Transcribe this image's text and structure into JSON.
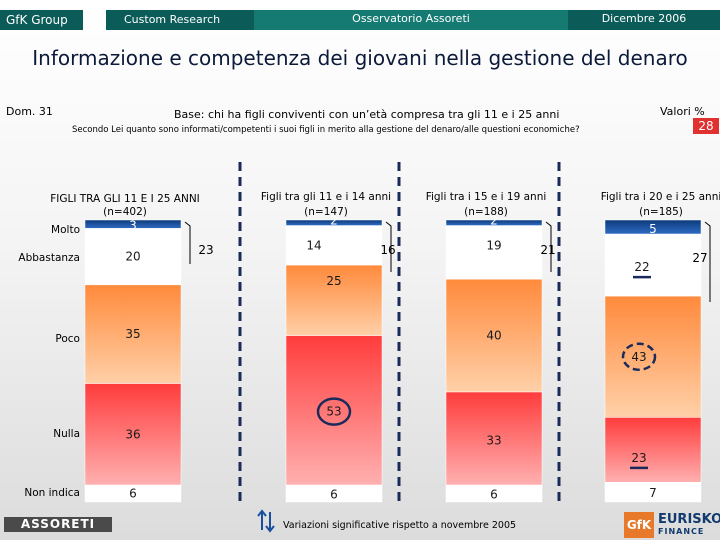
{
  "header": {
    "brand": "GfK Group",
    "dept": "Custom Research",
    "study": "Osservatorio Assoreti",
    "date": "Dicembre 2006"
  },
  "title": "Informazione e competenza dei giovani nella gestione del denaro",
  "question_code": "Dom. 31",
  "base": "Base: chi ha figli conviventi con un’età compresa tra gli 11 e i 25 anni",
  "question": "Secondo Lei quanto sono informati/competenti i suoi figli in merito alla gestione del denaro/alle questioni economiche?",
  "values_label": "Valori %",
  "chart_data": {
    "type": "bar",
    "stacked": true,
    "unit": "%",
    "categories": [
      "Molto",
      "Abbastanza",
      "Poco",
      "Nulla",
      "Non indica"
    ],
    "groups": [
      {
        "name": "FIGLI TRA GLI 11 E I 25 ANNI",
        "n": "(n=402)",
        "values": [
          3,
          20,
          35,
          36,
          6
        ],
        "labels": [
          "3",
          "20",
          "35",
          "36",
          "6"
        ],
        "sum_informed": "23",
        "circled": [],
        "marked": []
      },
      {
        "name": "Figli tra gli 11 e i 14 anni",
        "n": "(n=147)",
        "values": [
          2,
          14,
          25,
          53,
          6
        ],
        "labels": [
          "2",
          "14",
          "25",
          "53",
          "6"
        ],
        "sum_informed": "16",
        "circled": [
          3
        ],
        "marked": []
      },
      {
        "name": "Figli tra i 15 e i 19 anni",
        "n": "(n=188)",
        "values": [
          2,
          19,
          40,
          33,
          6
        ],
        "labels": [
          "2",
          "19",
          "40",
          "33",
          "6"
        ],
        "sum_informed": "21",
        "circled": [],
        "marked": []
      },
      {
        "name": "Figli tra i 20 e i 25 anni",
        "n": "(n=185)",
        "values": [
          5,
          22,
          43,
          23,
          7
        ],
        "labels": [
          "5",
          "22",
          "43",
          "23",
          "7"
        ],
        "sum_informed": "27",
        "circled": [
          2
        ],
        "marked": [
          1,
          3
        ]
      }
    ],
    "extra_label": "28",
    "legend": "Variazioni significative rispetto a novembre 2005",
    "colors": [
      "#1b4f9c",
      "#ffffff",
      "#ffa260",
      "#ff5050",
      "#ffffff"
    ]
  },
  "footer": {
    "left_logo": "ASSORETI",
    "right_logo_mark": "GfK",
    "right_logo_name": "EURISKO",
    "right_logo_sub": "FINANCE"
  }
}
